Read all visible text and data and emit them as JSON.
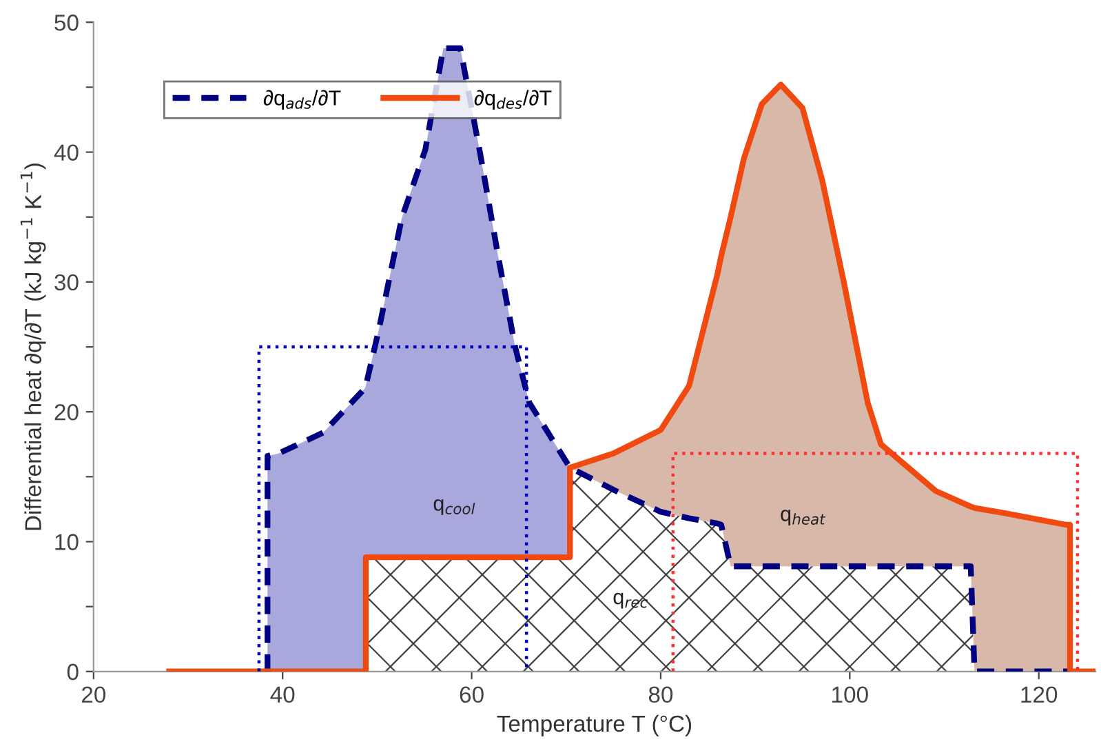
{
  "chart_data": {
    "type": "line",
    "xlabel": "Temperature T (°C)",
    "ylabel": "Differential heat ∂q/∂T (kJ kg$^{−1}$ K$^{−1}$)",
    "x": [
      28,
      38.4,
      38.4,
      39.6,
      44.3,
      48.7,
      48.8,
      48.8,
      50.2,
      52.6,
      55.1,
      57,
      58.8,
      60.9,
      62.8,
      64.6,
      66.1,
      70.4,
      70.4,
      75,
      80,
      83,
      86,
      86.4,
      87.4,
      88.8,
      90.7,
      92.7,
      95,
      97.1,
      99.4,
      101.9,
      103.3,
      109.1,
      112.8,
      113.2,
      116.4,
      122.9,
      123.3,
      123.3,
      126
    ],
    "series": [
      {
        "type": "area",
        "color": "#ffffff",
        "values": [
          0,
          0,
          0,
          0,
          0,
          0,
          0,
          8.8,
          8.8,
          8.8,
          8.8,
          8.8,
          8.8,
          8.8,
          8.8,
          8.8,
          8.8,
          8.8,
          15.7,
          14,
          12.3,
          11.8,
          11.4,
          11.3,
          8.1,
          8.1,
          8.1,
          8.1,
          8.1,
          8.1,
          8.1,
          8.1,
          8.1,
          8.1,
          8.1,
          0,
          0,
          0,
          0,
          0,
          0
        ]
      },
      {
        "name": "∂q$_{ads}$/∂T",
        "color": "#000080",
        "line_style": "dashed",
        "values": [
          null,
          0,
          16.6,
          16.8,
          18.4,
          21.8,
          22,
          22,
          26.4,
          34.9,
          40.2,
          48,
          48,
          39.9,
          32,
          25,
          20.7,
          15.7,
          15.7,
          14,
          12.3,
          11.8,
          11.4,
          11.3,
          8.1,
          8.1,
          8.1,
          8.1,
          8.1,
          8.1,
          8.1,
          8.1,
          8.1,
          8.1,
          8.1,
          0,
          0,
          0,
          0,
          0,
          null
        ],
        "lower": [
          null,
          0,
          0,
          0,
          0,
          0,
          0,
          8.8,
          8.8,
          8.8,
          8.8,
          8.8,
          8.8,
          8.8,
          8.8,
          8.8,
          8.8,
          8.8,
          15.7,
          null,
          null,
          null,
          null,
          null,
          null,
          null,
          null,
          null,
          null,
          null,
          null,
          null,
          null,
          null,
          null,
          null,
          null,
          null,
          null,
          null,
          null
        ],
        "upper": [
          null,
          0,
          16.6,
          16.8,
          18.4,
          21.8,
          22,
          22,
          26.4,
          34.9,
          40.2,
          48,
          48,
          39.9,
          32,
          25,
          20.7,
          15.7,
          15.7,
          null,
          null,
          null,
          null,
          null,
          null,
          null,
          null,
          null,
          null,
          null,
          null,
          null,
          null,
          null,
          null,
          null,
          null,
          null,
          null,
          null,
          null
        ]
      },
      {
        "name": "∂q$_{des}$/∂T",
        "color": "#f04a10",
        "line_style": "solid",
        "values": [
          0,
          0,
          0,
          0,
          0,
          0,
          0,
          8.8,
          8.8,
          8.8,
          8.8,
          8.8,
          8.8,
          8.8,
          8.8,
          8.8,
          8.8,
          8.8,
          15.7,
          16.8,
          18.6,
          22,
          30.6,
          32,
          35,
          39.5,
          43.7,
          45.2,
          43.4,
          37.8,
          29.9,
          20.7,
          17.5,
          13.9,
          12.7,
          12.6,
          12.2,
          11.3,
          11.3,
          0,
          0
        ],
        "lower": [
          null,
          null,
          null,
          null,
          null,
          null,
          null,
          null,
          null,
          null,
          null,
          null,
          null,
          null,
          null,
          null,
          null,
          null,
          15.7,
          14,
          12.3,
          11.8,
          11.4,
          11.3,
          8.1,
          8.1,
          8.1,
          8.1,
          8.1,
          8.1,
          8.1,
          8.1,
          8.1,
          8.1,
          8.1,
          0,
          0,
          0,
          0,
          0,
          null
        ],
        "upper": [
          null,
          null,
          null,
          null,
          null,
          null,
          null,
          null,
          null,
          null,
          null,
          null,
          null,
          null,
          null,
          null,
          null,
          null,
          15.7,
          16.8,
          18.6,
          22,
          30.6,
          32,
          35,
          39.5,
          43.7,
          45.2,
          43.4,
          37.8,
          29.9,
          20.7,
          17.5,
          13.9,
          12.7,
          12.6,
          12.2,
          11.3,
          11.3,
          0,
          null
        ]
      },
      {
        "color": "#0000c0",
        "line_style": "dotted",
        "x": [
          37.5,
          37.5,
          65.8,
          65.8
        ],
        "values": [
          0,
          25,
          25,
          0
        ]
      },
      {
        "color": "#ff3030",
        "line_style": "dotted",
        "x": [
          81.3,
          81.3,
          124.1,
          124.1
        ],
        "values": [
          0,
          16.8,
          16.8,
          0
        ]
      }
    ],
    "annotations": [
      "q$_{cool}$",
      "q$_{rec}$",
      "q$_{heat}$"
    ],
    "xlim": [
      20,
      126
    ],
    "xticks": [
      20,
      40,
      60,
      80,
      100,
      120
    ],
    "ylim": [
      0,
      50
    ],
    "yticks": [
      0,
      {
        "value": 5,
        "label": null
      },
      10,
      {
        "value": 15,
        "label": null
      },
      20,
      {
        "value": 25,
        "label": null
      },
      30,
      {
        "value": 35,
        "label": null
      },
      40,
      {
        "value": 45,
        "label": null
      },
      50
    ],
    "grid": false,
    "legend": "top left"
  }
}
